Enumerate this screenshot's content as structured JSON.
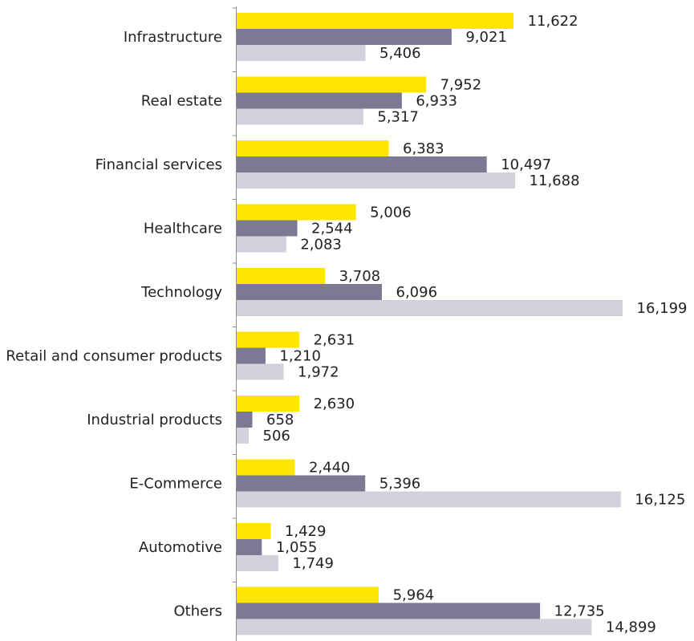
{
  "chart_data": {
    "type": "bar",
    "orientation": "horizontal",
    "categories": [
      "Infrastructure",
      "Real estate",
      "Financial services",
      "Healthcare",
      "Technology",
      "Retail and consumer products",
      "Industrial products",
      "E-Commerce",
      "Automotive",
      "Others"
    ],
    "series": [
      {
        "color": "#FFE600",
        "values": [
          11622,
          7952,
          6383,
          5006,
          3708,
          2631,
          2630,
          2440,
          1429,
          5964
        ],
        "labels": [
          "11,622",
          "7,952",
          "6,383",
          "5,006",
          "3,708",
          "2,631",
          "2,630",
          "2,440",
          "1,429",
          "5,964"
        ]
      },
      {
        "color": "#7B7A92",
        "values": [
          9021,
          6933,
          10497,
          2544,
          6096,
          1210,
          658,
          5396,
          1055,
          12735
        ],
        "labels": [
          "9,021",
          "6,933",
          "10,497",
          "2,544",
          "6,096",
          "1,210",
          "658",
          "5,396",
          "1,055",
          "12,735"
        ]
      },
      {
        "color": "#D2D2DC",
        "values": [
          5406,
          5317,
          11688,
          2083,
          16199,
          1972,
          506,
          16125,
          1749,
          14899
        ],
        "labels": [
          "5,406",
          "5,317",
          "11,688",
          "2,083",
          "16,199",
          "1,972",
          "506",
          "16,125",
          "1,749",
          "14,899"
        ]
      }
    ],
    "title": "",
    "xlabel": "",
    "ylabel": "",
    "xlim": [
      0,
      16199
    ],
    "grid": false,
    "legend": "none"
  }
}
